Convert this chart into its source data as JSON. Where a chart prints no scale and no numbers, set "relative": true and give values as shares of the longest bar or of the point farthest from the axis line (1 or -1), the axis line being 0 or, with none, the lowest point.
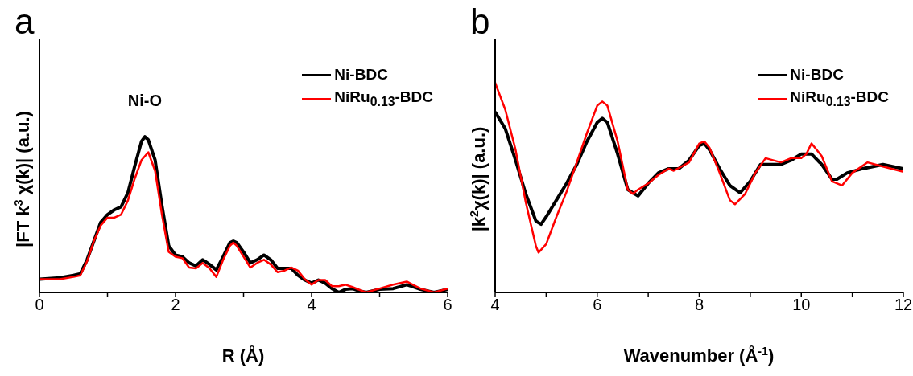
{
  "chart_data": [
    {
      "type": "line",
      "title": "a",
      "xlabel": "R (Å)",
      "ylabel": "|FT k$^{3}$ χ(k)| (a.u.)",
      "relative": true,
      "xlim": [
        0,
        6
      ],
      "xticks": [
        0,
        {
          "value": 1,
          "label": null
        },
        2,
        {
          "value": 3,
          "label": null
        },
        4,
        {
          "value": 5,
          "label": null
        },
        6
      ],
      "legend": "top right",
      "annotations": [
        {
          "text": "Ni-O",
          "x": 1.55,
          "y": 1.0
        }
      ],
      "series": [
        {
          "name": "Ni-BDC",
          "color": "#000000",
          "x": [
            0,
            0.3,
            0.5,
            0.6,
            0.7,
            0.8,
            0.9,
            1.0,
            1.1,
            1.2,
            1.3,
            1.4,
            1.5,
            1.55,
            1.6,
            1.7,
            1.8,
            1.9,
            2.0,
            2.1,
            2.2,
            2.3,
            2.4,
            2.5,
            2.6,
            2.7,
            2.8,
            2.85,
            2.9,
            3.0,
            3.1,
            3.2,
            3.3,
            3.4,
            3.5,
            3.6,
            3.7,
            3.8,
            3.9,
            4.0,
            4.1,
            4.2,
            4.3,
            4.4,
            4.5,
            4.6,
            4.7,
            4.8,
            5.0,
            5.2,
            5.4,
            5.6,
            5.8,
            6.0
          ],
          "values": [
            0.085,
            0.094,
            0.11,
            0.12,
            0.21,
            0.33,
            0.45,
            0.5,
            0.53,
            0.55,
            0.64,
            0.81,
            0.97,
            1.0,
            0.98,
            0.85,
            0.56,
            0.3,
            0.24,
            0.23,
            0.19,
            0.17,
            0.21,
            0.18,
            0.145,
            0.23,
            0.32,
            0.33,
            0.32,
            0.26,
            0.19,
            0.21,
            0.24,
            0.21,
            0.155,
            0.155,
            0.155,
            0.11,
            0.08,
            0.06,
            0.08,
            0.06,
            0.025,
            0,
            0.02,
            0.025,
            0.01,
            0,
            0.02,
            0.025,
            0.05,
            0.02,
            0,
            0.02
          ]
        },
        {
          "name": "NiRu$_{0.13}$-BDC",
          "color": "#ff0000",
          "x": [
            0,
            0.3,
            0.5,
            0.6,
            0.7,
            0.8,
            0.9,
            1.0,
            1.1,
            1.2,
            1.3,
            1.4,
            1.5,
            1.6,
            1.7,
            1.8,
            1.9,
            2.0,
            2.1,
            2.2,
            2.3,
            2.4,
            2.5,
            2.6,
            2.7,
            2.8,
            2.85,
            2.9,
            3.0,
            3.1,
            3.2,
            3.3,
            3.4,
            3.5,
            3.6,
            3.7,
            3.8,
            3.9,
            4.0,
            4.1,
            4.2,
            4.3,
            4.4,
            4.5,
            4.6,
            4.8,
            5.0,
            5.2,
            5.4,
            5.6,
            5.8,
            6.0
          ],
          "values": [
            0.085,
            0.085,
            0.1,
            0.11,
            0.2,
            0.33,
            0.43,
            0.48,
            0.48,
            0.5,
            0.59,
            0.73,
            0.85,
            0.9,
            0.78,
            0.5,
            0.26,
            0.23,
            0.22,
            0.16,
            0.155,
            0.19,
            0.155,
            0.1,
            0.21,
            0.3,
            0.32,
            0.3,
            0.23,
            0.16,
            0.19,
            0.21,
            0.18,
            0.13,
            0.14,
            0.16,
            0.14,
            0.085,
            0.05,
            0.08,
            0.08,
            0.04,
            0.04,
            0.05,
            0.035,
            0,
            0.025,
            0.05,
            0.07,
            0.025,
            0,
            0.025
          ]
        }
      ]
    },
    {
      "type": "line",
      "title": "b",
      "xlabel": "Wavenumber (Å$^{-1}$)",
      "ylabel": "|k$^{2}$χ(k)| (a.u.)",
      "relative": true,
      "xlim": [
        4,
        12
      ],
      "xticks": [
        4,
        {
          "value": 5,
          "label": null
        },
        6,
        {
          "value": 7,
          "label": null
        },
        8,
        {
          "value": 9,
          "label": null
        },
        10,
        {
          "value": 11,
          "label": null
        },
        12
      ],
      "legend": "top right",
      "series": [
        {
          "name": "Ni-BDC",
          "color": "#000000",
          "x": [
            4.0,
            4.2,
            4.4,
            4.6,
            4.8,
            4.9,
            5.0,
            5.2,
            5.4,
            5.6,
            5.8,
            6.0,
            6.1,
            6.2,
            6.4,
            6.6,
            6.8,
            7.0,
            7.2,
            7.4,
            7.6,
            7.8,
            8.0,
            8.1,
            8.2,
            8.4,
            8.6,
            8.8,
            9.0,
            9.2,
            9.4,
            9.6,
            9.8,
            10.0,
            10.2,
            10.4,
            10.6,
            10.7,
            10.9,
            11.2,
            11.6,
            12.0
          ],
          "values": [
            0.86,
            0.78,
            0.63,
            0.47,
            0.34,
            0.325,
            0.36,
            0.44,
            0.52,
            0.61,
            0.72,
            0.81,
            0.83,
            0.81,
            0.66,
            0.49,
            0.46,
            0.52,
            0.57,
            0.59,
            0.59,
            0.63,
            0.7,
            0.71,
            0.68,
            0.59,
            0.51,
            0.475,
            0.53,
            0.61,
            0.61,
            0.61,
            0.63,
            0.66,
            0.66,
            0.61,
            0.54,
            0.54,
            0.57,
            0.59,
            0.61,
            0.59
          ]
        },
        {
          "name": "NiRu$_{0.13}$-BDC",
          "color": "#ff0000",
          "x": [
            4.0,
            4.2,
            4.4,
            4.6,
            4.8,
            4.85,
            5.0,
            5.2,
            5.4,
            5.6,
            5.8,
            6.0,
            6.1,
            6.2,
            6.4,
            6.6,
            6.7,
            6.8,
            7.0,
            7.2,
            7.4,
            7.5,
            7.8,
            8.0,
            8.1,
            8.2,
            8.4,
            8.6,
            8.7,
            8.9,
            9.1,
            9.3,
            9.6,
            9.8,
            10.0,
            10.1,
            10.2,
            10.4,
            10.6,
            10.8,
            11.0,
            11.3,
            11.6,
            12.0
          ],
          "values": [
            1.0,
            0.87,
            0.68,
            0.43,
            0.22,
            0.19,
            0.23,
            0.36,
            0.48,
            0.62,
            0.76,
            0.89,
            0.91,
            0.89,
            0.72,
            0.49,
            0.47,
            0.49,
            0.52,
            0.56,
            0.59,
            0.58,
            0.62,
            0.71,
            0.72,
            0.69,
            0.57,
            0.44,
            0.42,
            0.47,
            0.57,
            0.64,
            0.62,
            0.64,
            0.64,
            0.66,
            0.71,
            0.65,
            0.53,
            0.51,
            0.57,
            0.62,
            0.6,
            0.575
          ]
        }
      ]
    }
  ]
}
